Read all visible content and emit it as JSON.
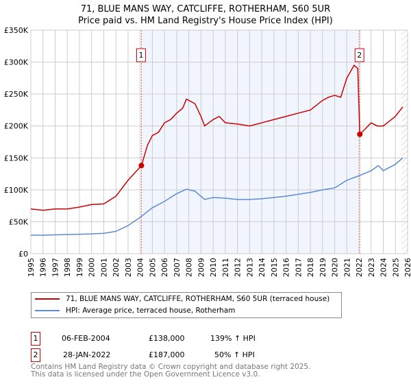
{
  "chart_data": {
    "type": "line",
    "title": "71, BLUE MANS WAY, CATCLIFFE, ROTHERHAM, S60 5UR",
    "subtitle": "Price paid vs. HM Land Registry's House Price Index (HPI)",
    "xlim": [
      1995,
      2026
    ],
    "ylim": [
      0,
      350000
    ],
    "x_ticks": [
      "1995",
      "1996",
      "1997",
      "1998",
      "1999",
      "2000",
      "2001",
      "2002",
      "2003",
      "2004",
      "2005",
      "2006",
      "2007",
      "2008",
      "2009",
      "2010",
      "2011",
      "2012",
      "2013",
      "2014",
      "2015",
      "2016",
      "2017",
      "2018",
      "2019",
      "2020",
      "2021",
      "2022",
      "2023",
      "2024",
      "2025",
      "2026"
    ],
    "y_ticks": [
      {
        "v": 0,
        "label": "£0"
      },
      {
        "v": 50000,
        "label": "£50K"
      },
      {
        "v": 100000,
        "label": "£100K"
      },
      {
        "v": 150000,
        "label": "£150K"
      },
      {
        "v": 200000,
        "label": "£200K"
      },
      {
        "v": 250000,
        "label": "£250K"
      },
      {
        "v": 300000,
        "label": "£300K"
      },
      {
        "v": 350000,
        "label": "£350K"
      }
    ],
    "grid": true,
    "series": [
      {
        "name": "71, BLUE MANS WAY, CATCLIFFE, ROTHERHAM, S60 5UR (terraced house)",
        "color": "#cc0000",
        "x": [
          1995,
          1996,
          1997,
          1998,
          1999,
          2000,
          2001,
          2002,
          2003,
          2004.1,
          2004.6,
          2005,
          2005.5,
          2006,
          2006.5,
          2007,
          2007.5,
          2007.8,
          2008.5,
          2009,
          2009.3,
          2010,
          2010.5,
          2011,
          2012,
          2013,
          2014,
          2015,
          2016,
          2017,
          2018,
          2019,
          2019.5,
          2020,
          2020.5,
          2021,
          2021.6,
          2021.9,
          2022.07,
          2022.5,
          2023,
          2023.5,
          2024,
          2025,
          2025.6
        ],
        "y": [
          70000,
          68000,
          70000,
          70000,
          73000,
          77000,
          78000,
          90000,
          115000,
          138000,
          170000,
          185000,
          190000,
          205000,
          210000,
          220000,
          228000,
          242000,
          235000,
          215000,
          200000,
          210000,
          215000,
          205000,
          203000,
          200000,
          205000,
          210000,
          215000,
          220000,
          225000,
          240000,
          245000,
          248000,
          245000,
          275000,
          295000,
          290000,
          187000,
          195000,
          205000,
          200000,
          200000,
          215000,
          230000
        ]
      },
      {
        "name": "HPI: Average price, terraced house, Rotherham",
        "color": "#5b8bd0",
        "x": [
          1995,
          1996,
          1997,
          1998,
          1999,
          2000,
          2001,
          2002,
          2003,
          2004,
          2005,
          2006,
          2007,
          2007.8,
          2008.5,
          2009.3,
          2010,
          2011,
          2012,
          2013,
          2014,
          2015,
          2016,
          2017,
          2018,
          2019,
          2020,
          2021,
          2022,
          2023,
          2023.6,
          2024,
          2025,
          2025.6
        ],
        "y": [
          29000,
          29000,
          29500,
          30000,
          30500,
          31000,
          32000,
          35000,
          44000,
          57000,
          72000,
          82000,
          94000,
          101000,
          98000,
          85000,
          88000,
          87000,
          85000,
          85000,
          86000,
          88000,
          90000,
          93000,
          96000,
          100000,
          103000,
          115000,
          122000,
          130000,
          138000,
          130000,
          140000,
          150000
        ]
      }
    ],
    "legend_position": "bottom",
    "annotations": [
      {
        "label": "1",
        "x": 2004.1,
        "date": "06-FEB-2004",
        "price": "£138,000",
        "y": 138000,
        "hpi": "139% ↑ HPI"
      },
      {
        "label": "2",
        "x": 2022.07,
        "date": "28-JAN-2022",
        "price": "£187,000",
        "y": 187000,
        "hpi": "50% ↑ HPI"
      }
    ],
    "forecast_start": 2025.5
  },
  "footer": {
    "line1": "Contains HM Land Registry data © Crown copyright and database right 2025.",
    "line2": "This data is licensed under the Open Government Licence v3.0."
  }
}
